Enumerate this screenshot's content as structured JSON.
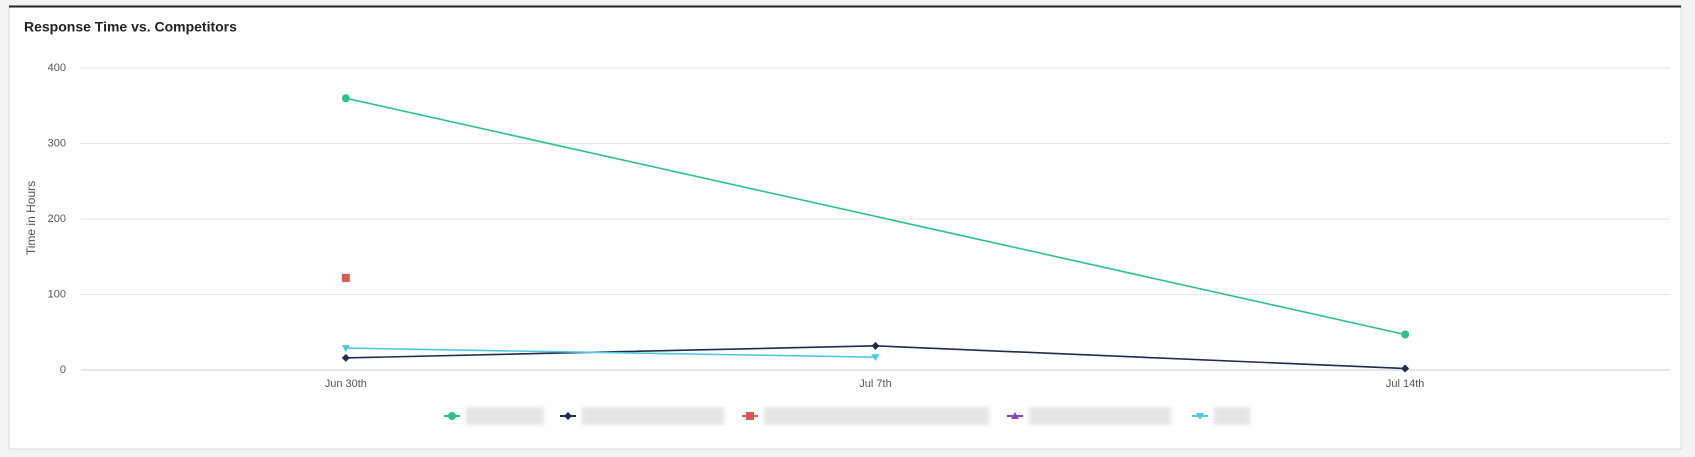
{
  "chart_data": {
    "type": "line",
    "title": "Response Time vs. Competitors",
    "y_label": "Time in Hours",
    "categories": [
      "Jun 30th",
      "Jul 7th",
      "Jul 14th"
    ],
    "ylim": [
      0,
      400
    ],
    "yticks": [
      0,
      100,
      200,
      300,
      400
    ],
    "grid": true,
    "connect_nulls": true,
    "legend": "bottom",
    "series": [
      {
        "color": "#2ec28b",
        "marker": "circle",
        "values": [
          360,
          null,
          47
        ]
      },
      {
        "color": "#1f2d4f",
        "marker": "diamond",
        "values": [
          16,
          32,
          2
        ]
      },
      {
        "color": "#e05656",
        "marker": "square",
        "values": [
          122,
          null,
          null
        ]
      },
      {
        "color": "#8e44ad",
        "marker": "triangle",
        "values": [
          null,
          null,
          null
        ]
      },
      {
        "color": "#4fc8e0",
        "marker": "triangle-down",
        "values": [
          29,
          17,
          null
        ]
      }
    ]
  }
}
